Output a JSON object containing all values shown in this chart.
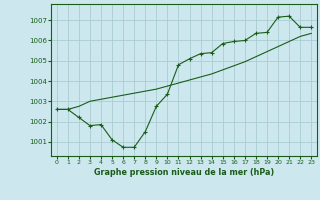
{
  "title": "Graphe pression niveau de la mer (hPa)",
  "bg_color": "#cce8ee",
  "line_color": "#1a5c1a",
  "grid_color": "#aaccd0",
  "x_ticks": [
    0,
    1,
    2,
    3,
    4,
    5,
    6,
    7,
    8,
    9,
    10,
    11,
    12,
    13,
    14,
    15,
    16,
    17,
    18,
    19,
    20,
    21,
    22,
    23
  ],
  "y_ticks": [
    1001,
    1002,
    1003,
    1004,
    1005,
    1006,
    1007
  ],
  "ylim": [
    1000.3,
    1007.8
  ],
  "xlim": [
    -0.5,
    23.5
  ],
  "series1_x": [
    0,
    1,
    2,
    3,
    4,
    5,
    6,
    7,
    8,
    9,
    10,
    11,
    12,
    13,
    14,
    15,
    16,
    17,
    18,
    19,
    20,
    21,
    22,
    23
  ],
  "series1_y": [
    1002.6,
    1002.6,
    1002.2,
    1001.8,
    1001.85,
    1001.1,
    1000.73,
    1000.73,
    1001.5,
    1002.75,
    1003.35,
    1004.8,
    1005.1,
    1005.35,
    1005.4,
    1005.85,
    1005.95,
    1006.0,
    1006.35,
    1006.4,
    1007.15,
    1007.2,
    1006.65,
    1006.65
  ],
  "series2_x": [
    0,
    1,
    2,
    3,
    4,
    5,
    6,
    7,
    8,
    9,
    10,
    11,
    12,
    13,
    14,
    15,
    16,
    17,
    18,
    19,
    20,
    21,
    22,
    23
  ],
  "series2_y": [
    1002.6,
    1002.6,
    1002.75,
    1003.0,
    1003.1,
    1003.2,
    1003.3,
    1003.4,
    1003.5,
    1003.6,
    1003.75,
    1003.9,
    1004.05,
    1004.2,
    1004.35,
    1004.55,
    1004.75,
    1004.95,
    1005.2,
    1005.45,
    1005.7,
    1005.95,
    1006.2,
    1006.35
  ]
}
